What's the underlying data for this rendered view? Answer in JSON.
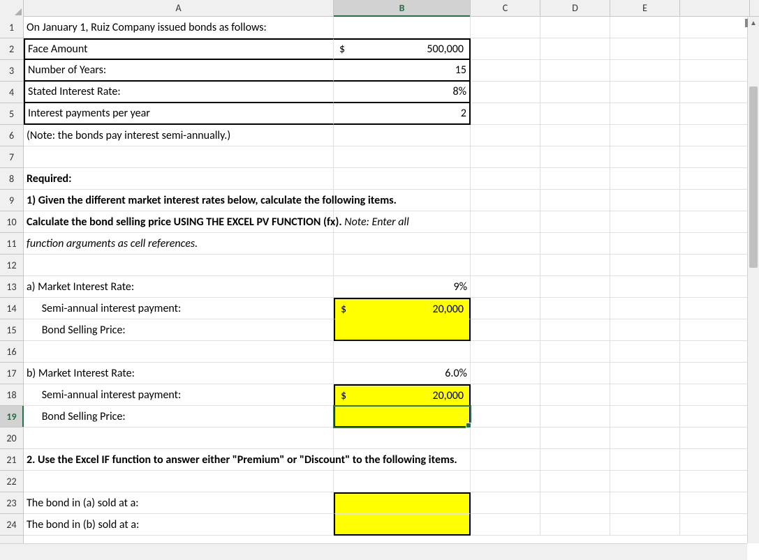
{
  "columns": [
    "A",
    "B",
    "C",
    "D",
    "E"
  ],
  "active_column": "B",
  "active_row": 19,
  "row_count": 24,
  "colors": {
    "highlight": "#ffff00",
    "grid": "#e0e0e0",
    "header_bg": "#f0f0f0",
    "active_border": "#217346",
    "black": "#000000"
  },
  "rows": {
    "1": {
      "A": "On January 1,  Ruiz Company issued bonds as follows:"
    },
    "2": {
      "A": "Face Amount",
      "B_currency": {
        "symbol": "$",
        "value": "500,000"
      }
    },
    "3": {
      "A": "Number of Years:",
      "B": "15"
    },
    "4": {
      "A": "Stated Interest Rate:",
      "B": "8%"
    },
    "5": {
      "A": "Interest payments per year",
      "B": "2"
    },
    "6": {
      "A": "(Note: the bonds pay interest semi-annually.)"
    },
    "8": {
      "A": "Required:"
    },
    "9": {
      "A": "1) Given the different market interest rates below, calculate the following items."
    },
    "10": {
      "A": "Calculate the bond selling price USING THE EXCEL PV FUNCTION (fx).",
      "A_tail": " Note: Enter all"
    },
    "11": {
      "A": "function arguments as cell references."
    },
    "13": {
      "A": "a)  Market Interest Rate:",
      "B": "9%"
    },
    "14": {
      "A": "      Semi-annual interest payment:",
      "B_currency": {
        "symbol": "$",
        "value": "20,000"
      }
    },
    "15": {
      "A": "      Bond Selling Price:"
    },
    "17": {
      "A": "b)  Market Interest Rate:",
      "B": "6.0%"
    },
    "18": {
      "A": "      Semi-annual interest payment:",
      "B_currency": {
        "symbol": "$",
        "value": "20,000"
      }
    },
    "19": {
      "A": "      Bond Selling Price:"
    },
    "21": {
      "A": "2. Use the Excel IF function to answer either \"Premium\" or \"Discount\" to the following items."
    },
    "23": {
      "A": "The bond in (a) sold at a:"
    },
    "24": {
      "A": "The bond in (b) sold at a:"
    }
  }
}
